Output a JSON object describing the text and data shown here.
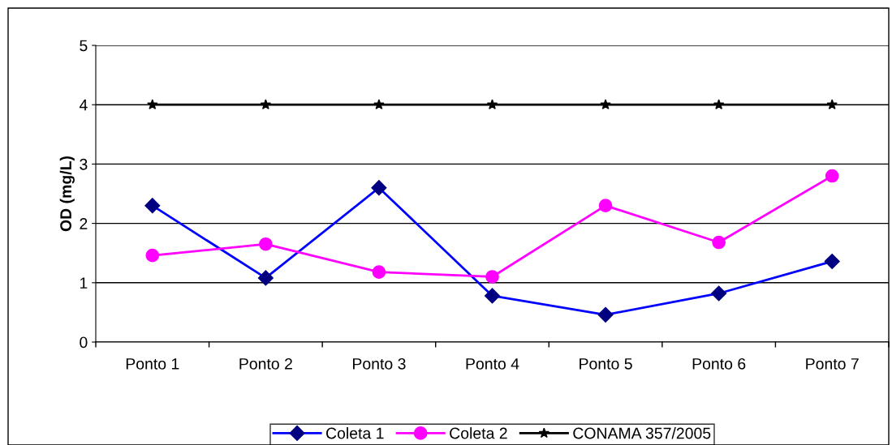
{
  "chart_data": {
    "type": "line",
    "ylabel": "OD (mg/L)",
    "categories": [
      "Ponto 1",
      "Ponto 2",
      "Ponto 3",
      "Ponto 4",
      "Ponto 5",
      "Ponto 6",
      "Ponto 7"
    ],
    "series": [
      {
        "name": "Coleta 1",
        "color": "#0000ff",
        "marker": "diamond",
        "values": [
          2.3,
          1.08,
          2.6,
          0.78,
          0.46,
          0.82,
          1.36
        ]
      },
      {
        "name": "Coleta 2",
        "color": "#ff00ff",
        "marker": "circle",
        "values": [
          1.46,
          1.65,
          1.18,
          1.1,
          2.3,
          1.68,
          2.8
        ]
      },
      {
        "name": "CONAMA 357/2005",
        "color": "#000000",
        "marker": "star",
        "values": [
          4,
          4,
          4,
          4,
          4,
          4,
          4
        ]
      }
    ],
    "ylim": [
      0,
      5
    ],
    "yticks": [
      0,
      1,
      2,
      3,
      4,
      5
    ],
    "grid": "y",
    "legend": "bottom",
    "line_style": "solid"
  }
}
